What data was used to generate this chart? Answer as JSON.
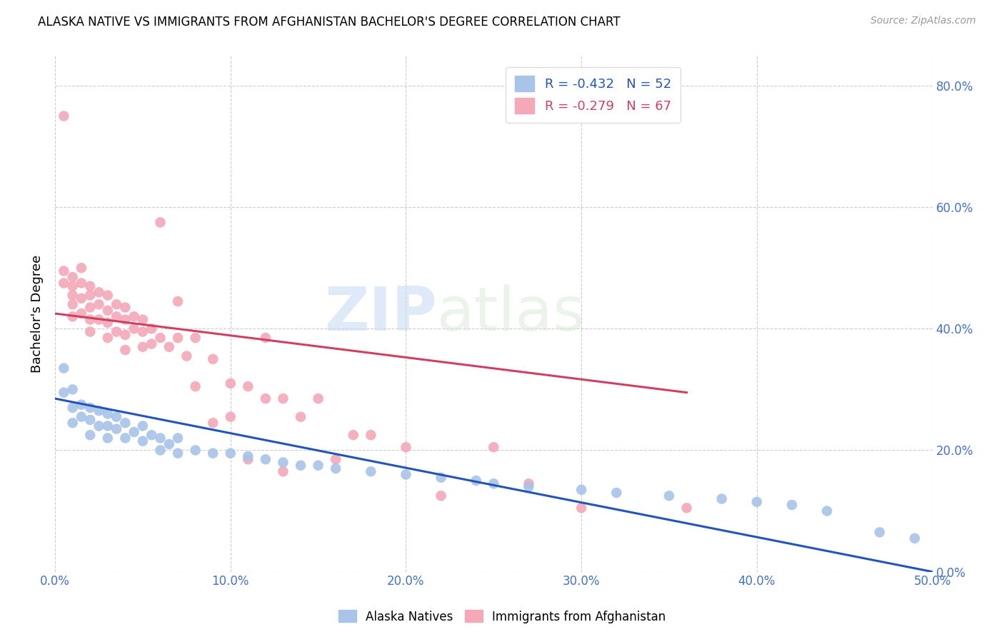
{
  "title": "ALASKA NATIVE VS IMMIGRANTS FROM AFGHANISTAN BACHELOR'S DEGREE CORRELATION CHART",
  "source": "Source: ZipAtlas.com",
  "xlabel": "",
  "ylabel": "Bachelor's Degree",
  "xmin": 0.0,
  "xmax": 0.5,
  "ymin": 0.0,
  "ymax": 0.85,
  "yticks": [
    0.0,
    0.2,
    0.4,
    0.6,
    0.8
  ],
  "xticks": [
    0.0,
    0.1,
    0.2,
    0.3,
    0.4,
    0.5
  ],
  "blue_R": -0.432,
  "blue_N": 52,
  "pink_R": -0.279,
  "pink_N": 67,
  "blue_color": "#a8c4e8",
  "pink_color": "#f4a8b8",
  "blue_line_color": "#2255bb",
  "pink_line_color": "#d04060",
  "grid_color": "#cccccc",
  "tick_label_color": "#4472c4",
  "blue_scatter_x": [
    0.005,
    0.005,
    0.01,
    0.01,
    0.01,
    0.015,
    0.015,
    0.02,
    0.02,
    0.02,
    0.025,
    0.025,
    0.03,
    0.03,
    0.03,
    0.035,
    0.035,
    0.04,
    0.04,
    0.045,
    0.05,
    0.05,
    0.055,
    0.06,
    0.06,
    0.065,
    0.07,
    0.07,
    0.08,
    0.09,
    0.1,
    0.11,
    0.12,
    0.13,
    0.14,
    0.15,
    0.16,
    0.18,
    0.2,
    0.22,
    0.24,
    0.25,
    0.27,
    0.3,
    0.32,
    0.35,
    0.38,
    0.4,
    0.42,
    0.44,
    0.47,
    0.49
  ],
  "blue_scatter_y": [
    0.335,
    0.295,
    0.3,
    0.27,
    0.245,
    0.275,
    0.255,
    0.27,
    0.25,
    0.225,
    0.265,
    0.24,
    0.26,
    0.24,
    0.22,
    0.255,
    0.235,
    0.245,
    0.22,
    0.23,
    0.24,
    0.215,
    0.225,
    0.22,
    0.2,
    0.21,
    0.22,
    0.195,
    0.2,
    0.195,
    0.195,
    0.19,
    0.185,
    0.18,
    0.175,
    0.175,
    0.17,
    0.165,
    0.16,
    0.155,
    0.15,
    0.145,
    0.14,
    0.135,
    0.13,
    0.125,
    0.12,
    0.115,
    0.11,
    0.1,
    0.065,
    0.055
  ],
  "pink_scatter_x": [
    0.005,
    0.005,
    0.005,
    0.01,
    0.01,
    0.01,
    0.01,
    0.01,
    0.015,
    0.015,
    0.015,
    0.015,
    0.02,
    0.02,
    0.02,
    0.02,
    0.02,
    0.025,
    0.025,
    0.025,
    0.03,
    0.03,
    0.03,
    0.03,
    0.035,
    0.035,
    0.035,
    0.04,
    0.04,
    0.04,
    0.04,
    0.045,
    0.045,
    0.05,
    0.05,
    0.05,
    0.055,
    0.055,
    0.06,
    0.06,
    0.065,
    0.07,
    0.07,
    0.075,
    0.08,
    0.08,
    0.09,
    0.09,
    0.1,
    0.1,
    0.11,
    0.11,
    0.12,
    0.12,
    0.13,
    0.13,
    0.14,
    0.15,
    0.16,
    0.17,
    0.18,
    0.2,
    0.22,
    0.25,
    0.27,
    0.3,
    0.36
  ],
  "pink_scatter_y": [
    0.75,
    0.495,
    0.475,
    0.485,
    0.47,
    0.455,
    0.44,
    0.42,
    0.5,
    0.475,
    0.45,
    0.425,
    0.47,
    0.455,
    0.435,
    0.415,
    0.395,
    0.46,
    0.44,
    0.415,
    0.455,
    0.43,
    0.41,
    0.385,
    0.44,
    0.42,
    0.395,
    0.435,
    0.415,
    0.39,
    0.365,
    0.42,
    0.4,
    0.415,
    0.395,
    0.37,
    0.4,
    0.375,
    0.575,
    0.385,
    0.37,
    0.445,
    0.385,
    0.355,
    0.385,
    0.305,
    0.35,
    0.245,
    0.31,
    0.255,
    0.305,
    0.185,
    0.385,
    0.285,
    0.285,
    0.165,
    0.255,
    0.285,
    0.185,
    0.225,
    0.225,
    0.205,
    0.125,
    0.205,
    0.145,
    0.105,
    0.105
  ],
  "blue_trend_x": [
    0.0,
    0.5
  ],
  "blue_trend_y": [
    0.285,
    0.0
  ],
  "pink_trend_x": [
    0.0,
    0.36
  ],
  "pink_trend_y": [
    0.425,
    0.295
  ]
}
